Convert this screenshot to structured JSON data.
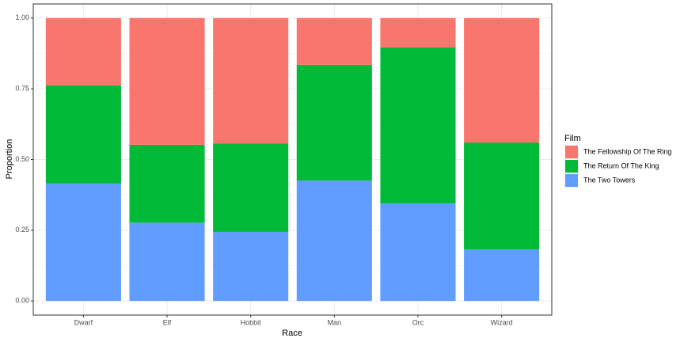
{
  "chart_data": {
    "type": "bar",
    "stacked": true,
    "x_label": "Race",
    "y_label": "Proportion",
    "legend_title": "Film",
    "legend_position": "right",
    "grid": true,
    "categories": [
      "Dwarf",
      "Elf",
      "Hobbit",
      "Man",
      "Orc",
      "Wizard"
    ],
    "series": [
      {
        "name": "The Fellowship Of The Ring",
        "color": "#F8766D",
        "values": [
          0.238,
          0.448,
          0.443,
          0.165,
          0.104,
          0.44
        ]
      },
      {
        "name": "The Return Of The King",
        "color": "#00BA38",
        "values": [
          0.347,
          0.275,
          0.313,
          0.409,
          0.551,
          0.378
        ]
      },
      {
        "name": "The Two Towers",
        "color": "#619CFF",
        "values": [
          0.415,
          0.277,
          0.244,
          0.426,
          0.345,
          0.182
        ]
      }
    ],
    "ylim": [
      0,
      1
    ],
    "yticks": [
      {
        "value": 0,
        "label": "0.00"
      },
      {
        "value": 0.25,
        "label": "0.25"
      },
      {
        "value": 0.5,
        "label": "0.50"
      },
      {
        "value": 0.75,
        "label": "0.75"
      },
      {
        "value": 1,
        "label": "1.00"
      }
    ]
  }
}
